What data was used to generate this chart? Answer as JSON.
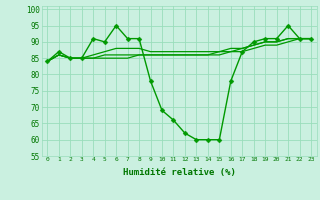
{
  "xlabel": "Humidité relative (%)",
  "background_color": "#caf0e0",
  "grid_color": "#99ddbb",
  "line_color": "#009900",
  "markersize": 2.5,
  "linewidth": 1.0,
  "ylim": [
    55,
    101
  ],
  "xlim": [
    -0.5,
    23.5
  ],
  "yticks": [
    55,
    60,
    65,
    70,
    75,
    80,
    85,
    90,
    95,
    100
  ],
  "xticks": [
    0,
    1,
    2,
    3,
    4,
    5,
    6,
    7,
    8,
    9,
    10,
    11,
    12,
    13,
    14,
    15,
    16,
    17,
    18,
    19,
    20,
    21,
    22,
    23
  ],
  "series": [
    [
      84,
      87,
      85,
      85,
      91,
      90,
      95,
      91,
      91,
      78,
      69,
      66,
      62,
      60,
      60,
      60,
      78,
      87,
      90,
      91,
      91,
      95,
      91,
      91
    ],
    [
      84,
      86,
      85,
      85,
      86,
      87,
      88,
      88,
      88,
      87,
      87,
      87,
      87,
      87,
      87,
      87,
      88,
      88,
      89,
      90,
      90,
      91,
      91,
      91
    ],
    [
      84,
      86,
      85,
      85,
      85,
      86,
      86,
      86,
      86,
      86,
      86,
      86,
      86,
      86,
      86,
      87,
      87,
      88,
      89,
      90,
      90,
      91,
      91,
      91
    ],
    [
      84,
      86,
      85,
      85,
      85,
      85,
      85,
      85,
      86,
      86,
      86,
      86,
      86,
      86,
      86,
      86,
      87,
      87,
      88,
      89,
      89,
      90,
      91,
      91
    ]
  ]
}
